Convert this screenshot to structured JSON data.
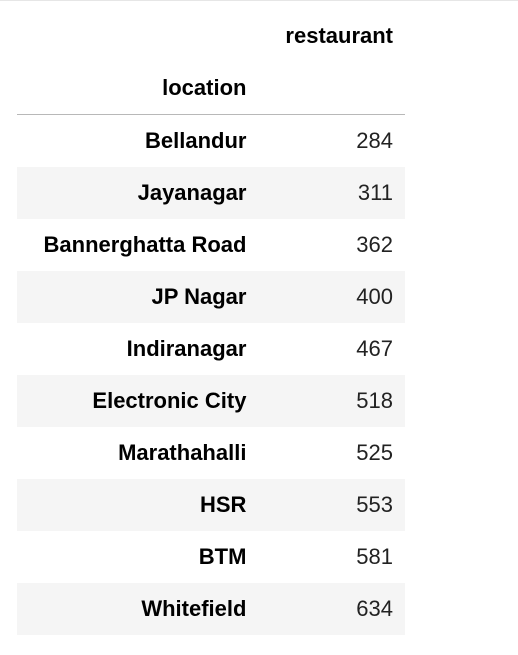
{
  "table": {
    "column_header": "restaurant",
    "index_header": "location",
    "rows": [
      {
        "location": "Bellandur",
        "restaurant": "284"
      },
      {
        "location": "Jayanagar",
        "restaurant": "311"
      },
      {
        "location": "Bannerghatta Road",
        "restaurant": "362"
      },
      {
        "location": "JP Nagar",
        "restaurant": "400"
      },
      {
        "location": "Indiranagar",
        "restaurant": "467"
      },
      {
        "location": "Electronic City",
        "restaurant": "518"
      },
      {
        "location": "Marathahalli",
        "restaurant": "525"
      },
      {
        "location": "HSR",
        "restaurant": "553"
      },
      {
        "location": "BTM",
        "restaurant": "581"
      },
      {
        "location": "Whitefield",
        "restaurant": "634"
      }
    ]
  }
}
